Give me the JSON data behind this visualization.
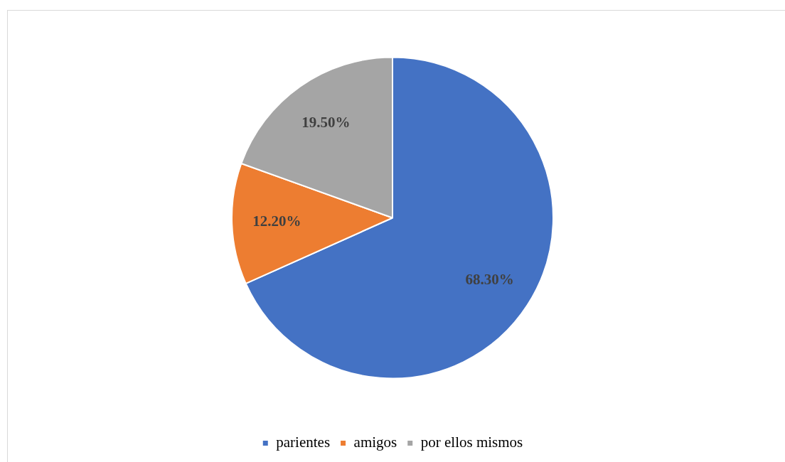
{
  "chart_data": {
    "type": "pie",
    "categories": [
      "parientes",
      "amigos",
      "por ellos mismos"
    ],
    "values": [
      68.3,
      12.2,
      19.5
    ],
    "colors": [
      "#4472c4",
      "#ed7d31",
      "#a5a5a5"
    ],
    "value_labels": [
      "68.30%",
      "12.20%",
      "19.50%"
    ],
    "legend": "bottom"
  }
}
